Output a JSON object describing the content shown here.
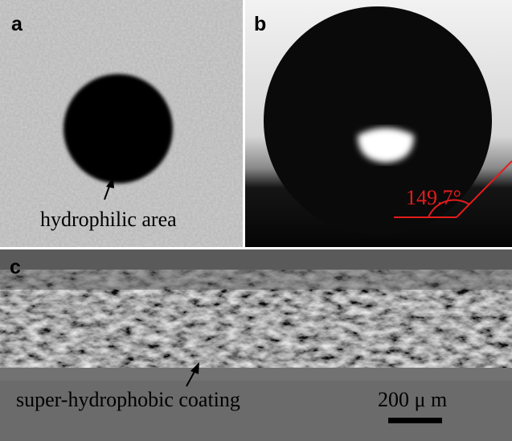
{
  "panels": [
    {
      "label": "a",
      "annotation": "hydrophilic area"
    },
    {
      "label": "b",
      "annotation": "149.7°"
    },
    {
      "label": "c",
      "annotation": "super-hydrophobic coating",
      "scale_bar": "200 μ m"
    }
  ]
}
